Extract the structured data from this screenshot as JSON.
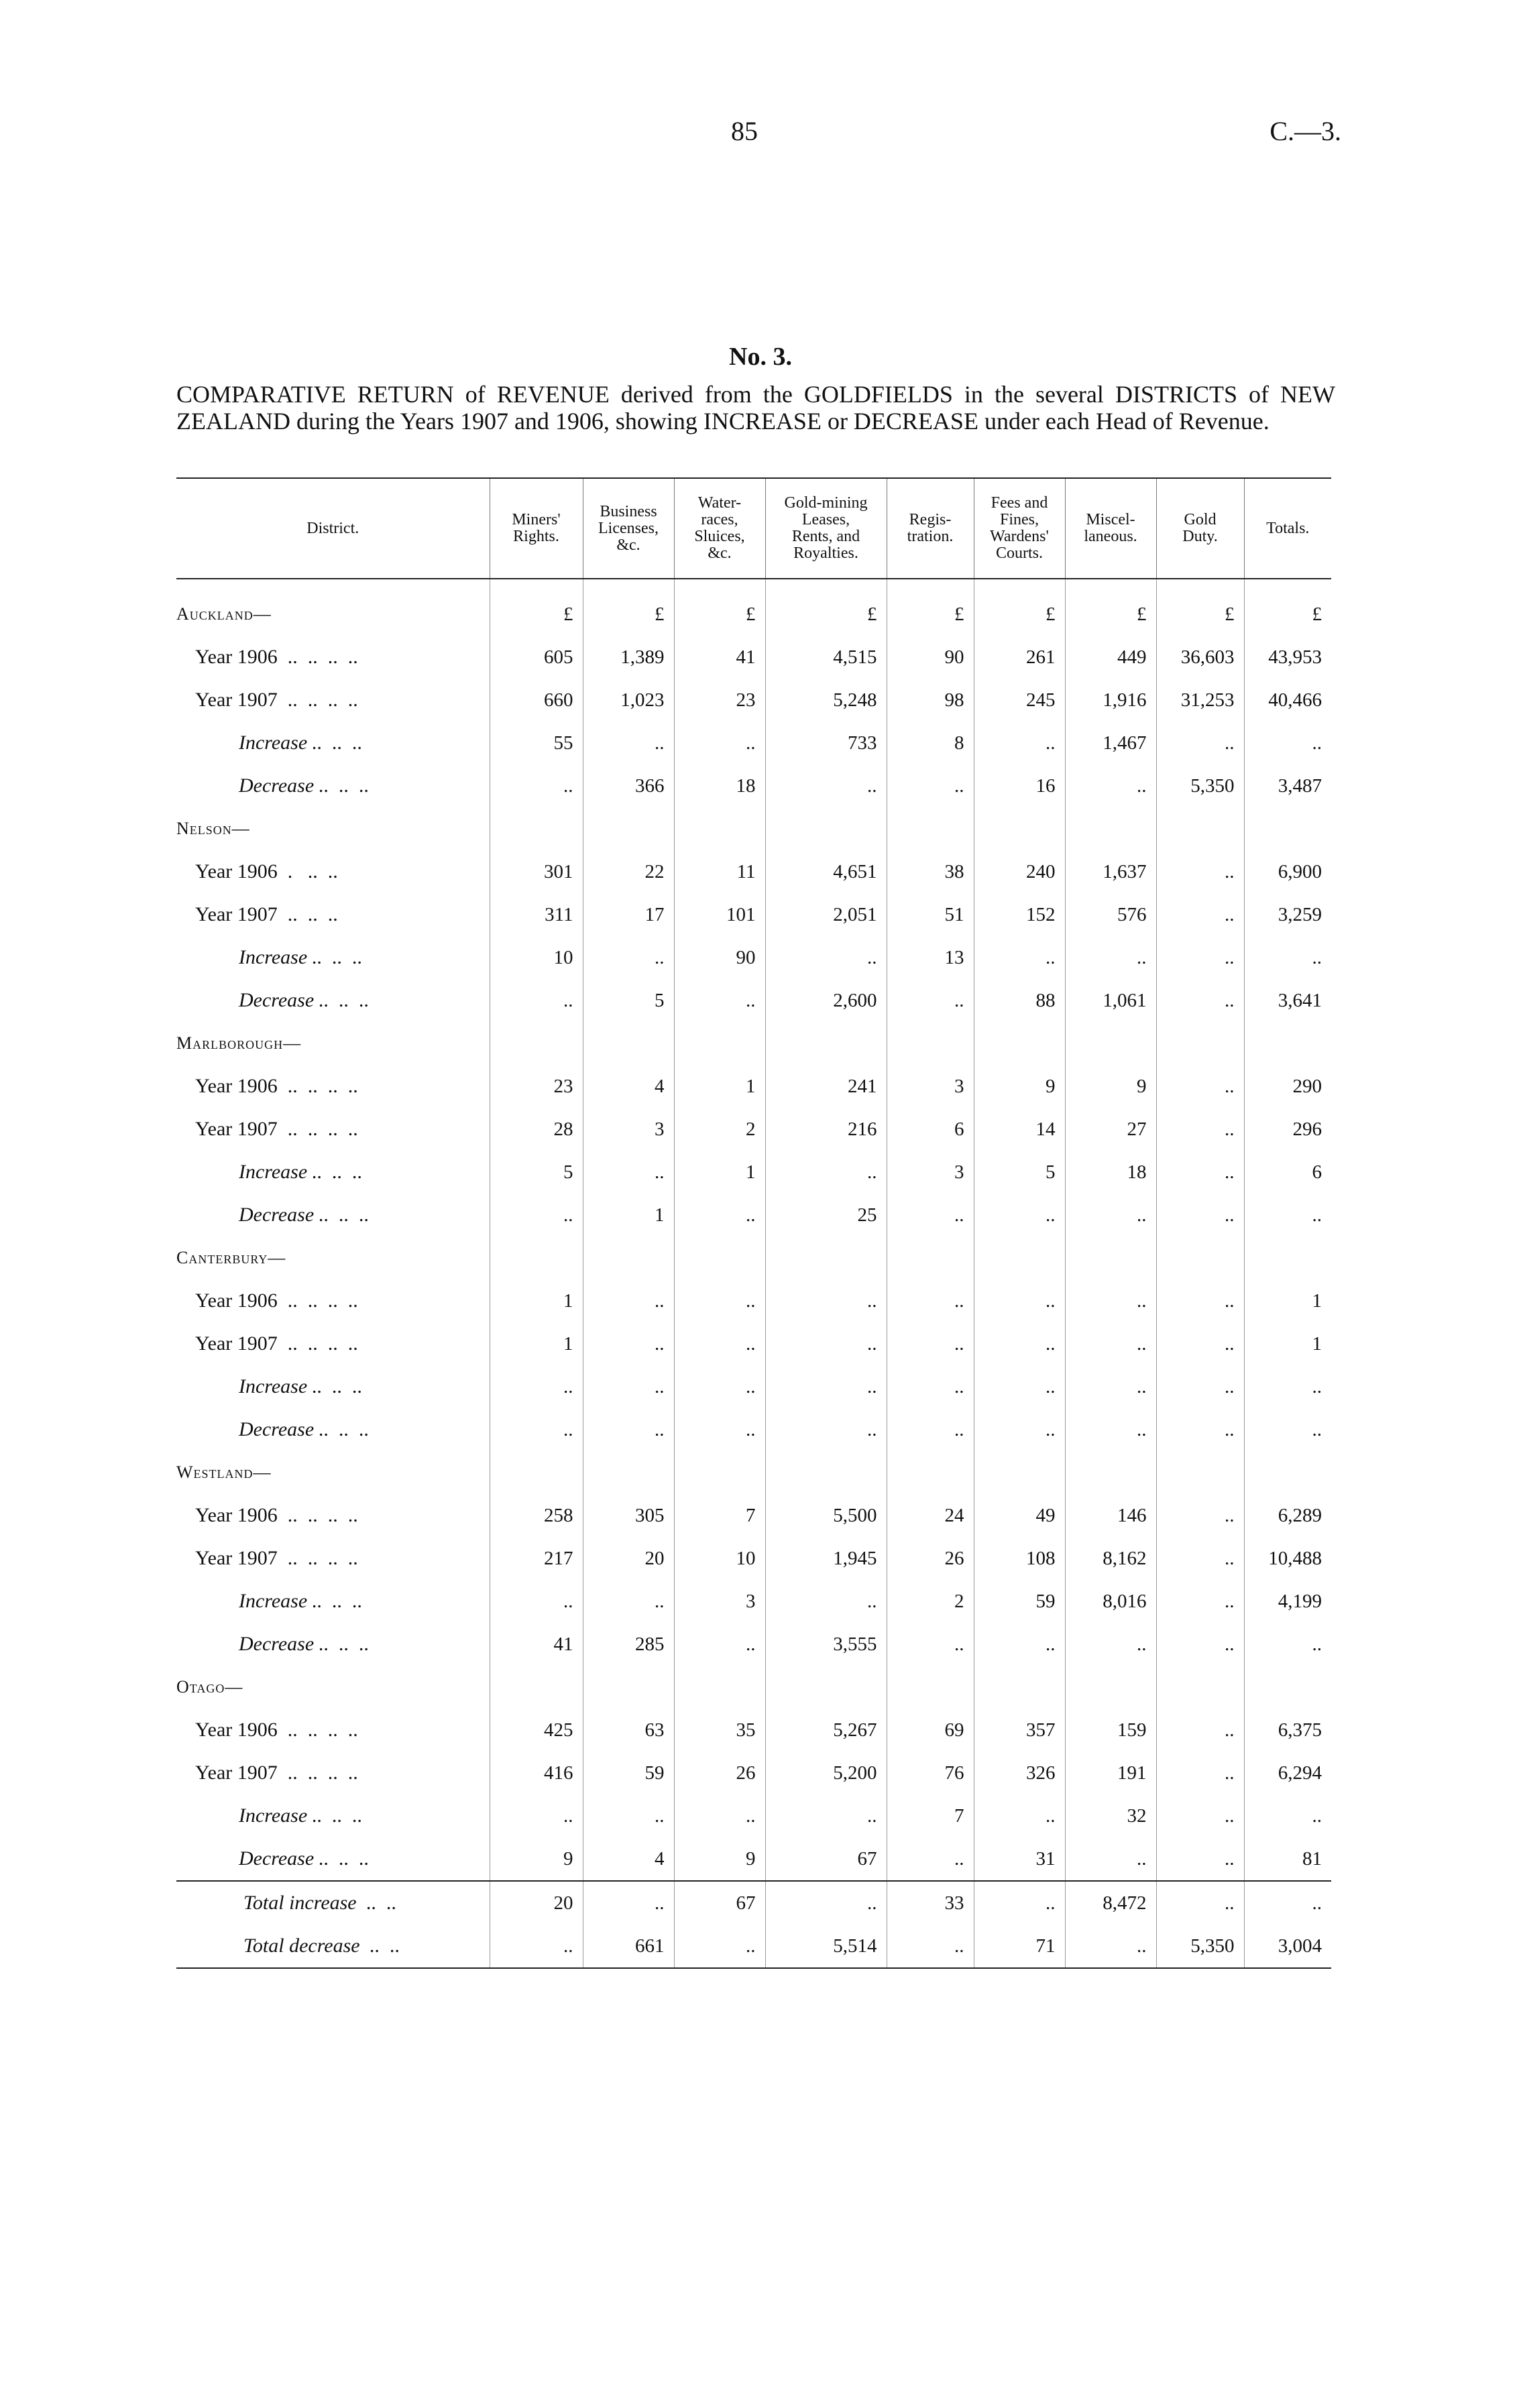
{
  "header": {
    "page_number": "85",
    "reference": "C.—3."
  },
  "title": "No. 3.",
  "description": "COMPARATIVE RETURN of REVENUE derived from the GOLDFIELDS in the several DISTRICTS of NEW ZEALAND during the Years 1907 and 1906, showing INCREASE or DECREASE under each Head of Revenue.",
  "table": {
    "columns": [
      "District.",
      "Miners'\nRights.",
      "Business\nLicenses,\n&c.",
      "Water-\nraces,\nSluices,\n&c.",
      "Gold-mining\nLeases,\nRents, and\nRoyalties.",
      "Regis-\ntration.",
      "Fees and\nFines,\nWardens'\nCourts.",
      "Miscel-\nlaneous.",
      "Gold\nDuty.",
      "Totals."
    ],
    "units": [
      "£",
      "£",
      "£",
      "£",
      "£",
      "£",
      "£",
      "£",
      "£"
    ],
    "groups": [
      {
        "district": "Auckland—",
        "rows": [
          {
            "label": "Year 1906  ..  ..  ..  ..",
            "cells": [
              "605",
              "1,389",
              "41",
              "4,515",
              "90",
              "261",
              "449",
              "36,603",
              "43,953"
            ]
          },
          {
            "label": "Year 1907  ..  ..  ..  ..",
            "cells": [
              "660",
              "1,023",
              "23",
              "5,248",
              "98",
              "245",
              "1,916",
              "31,253",
              "40,466"
            ]
          },
          {
            "label": "Increase ..  ..  ..",
            "cells": [
              "55",
              "..",
              "..",
              "733",
              "8",
              "..",
              "1,467",
              "..",
              ".."
            ]
          },
          {
            "label": "Decrease ..  ..  ..",
            "cells": [
              "..",
              "366",
              "18",
              "..",
              "..",
              "16",
              "..",
              "5,350",
              "3,487"
            ]
          }
        ]
      },
      {
        "district": "Nelson—",
        "rows": [
          {
            "label": "Year 1906  .   ..  ..",
            "cells": [
              "301",
              "22",
              "11",
              "4,651",
              "38",
              "240",
              "1,637",
              "..",
              "6,900"
            ]
          },
          {
            "label": "Year 1907  ..  ..  ..",
            "cells": [
              "311",
              "17",
              "101",
              "2,051",
              "51",
              "152",
              "576",
              "..",
              "3,259"
            ]
          },
          {
            "label": "Increase ..  ..  ..",
            "cells": [
              "10",
              "..",
              "90",
              "..",
              "13",
              "..",
              "..",
              "..",
              ".."
            ]
          },
          {
            "label": "Decrease ..  ..  ..",
            "cells": [
              "..",
              "5",
              "..",
              "2,600",
              "..",
              "88",
              "1,061",
              "..",
              "3,641"
            ]
          }
        ]
      },
      {
        "district": "Marlborough—",
        "rows": [
          {
            "label": "Year 1906  ..  ..  ..  ..",
            "cells": [
              "23",
              "4",
              "1",
              "241",
              "3",
              "9",
              "9",
              "..",
              "290"
            ]
          },
          {
            "label": "Year 1907  ..  ..  ..  ..",
            "cells": [
              "28",
              "3",
              "2",
              "216",
              "6",
              "14",
              "27",
              "..",
              "296"
            ]
          },
          {
            "label": "Increase ..  ..  ..",
            "cells": [
              "5",
              "..",
              "1",
              "..",
              "3",
              "5",
              "18",
              "..",
              "6"
            ]
          },
          {
            "label": "Decrease ..  ..  ..",
            "cells": [
              "..",
              "1",
              "..",
              "25",
              "..",
              "..",
              "..",
              "..",
              ".."
            ]
          }
        ]
      },
      {
        "district": "Canterbury—",
        "rows": [
          {
            "label": "Year 1906  ..  ..  ..  ..",
            "cells": [
              "1",
              "..",
              "..",
              "..",
              "..",
              "..",
              "..",
              "..",
              "1"
            ]
          },
          {
            "label": "Year 1907  ..  ..  ..  ..",
            "cells": [
              "1",
              "..",
              "..",
              "..",
              "..",
              "..",
              "..",
              "..",
              "1"
            ]
          },
          {
            "label": "Increase ..  ..  ..",
            "cells": [
              "..",
              "..",
              "..",
              "..",
              "..",
              "..",
              "..",
              "..",
              ".."
            ]
          },
          {
            "label": "Decrease ..  ..  ..",
            "cells": [
              "..",
              "..",
              "..",
              "..",
              "..",
              "..",
              "..",
              "..",
              ".."
            ]
          }
        ]
      },
      {
        "district": "Westland—",
        "rows": [
          {
            "label": "Year 1906  ..  ..  ..  ..",
            "cells": [
              "258",
              "305",
              "7",
              "5,500",
              "24",
              "49",
              "146",
              "..",
              "6,289"
            ]
          },
          {
            "label": "Year 1907  ..  ..  ..  ..",
            "cells": [
              "217",
              "20",
              "10",
              "1,945",
              "26",
              "108",
              "8,162",
              "..",
              "10,488"
            ]
          },
          {
            "label": "Increase ..  ..  ..",
            "cells": [
              "..",
              "..",
              "3",
              "..",
              "2",
              "59",
              "8,016",
              "..",
              "4,199"
            ]
          },
          {
            "label": "Decrease ..  ..  ..",
            "cells": [
              "41",
              "285",
              "..",
              "3,555",
              "..",
              "..",
              "..",
              "..",
              ".."
            ]
          }
        ]
      },
      {
        "district": "Otago—",
        "rows": [
          {
            "label": "Year 1906  ..  ..  ..  ..",
            "cells": [
              "425",
              "63",
              "35",
              "5,267",
              "69",
              "357",
              "159",
              "..",
              "6,375"
            ]
          },
          {
            "label": "Year 1907  ..  ..  ..  ..",
            "cells": [
              "416",
              "59",
              "26",
              "5,200",
              "76",
              "326",
              "191",
              "..",
              "6,294"
            ]
          },
          {
            "label": "Increase ..  ..  ..",
            "cells": [
              "..",
              "..",
              "..",
              "..",
              "7",
              "..",
              "32",
              "..",
              ".."
            ]
          },
          {
            "label": "Decrease ..  ..  ..",
            "cells": [
              "9",
              "4",
              "9",
              "67",
              "..",
              "31",
              "..",
              "..",
              "81"
            ]
          }
        ]
      }
    ],
    "totals": [
      {
        "label": "Total increase  ..  ..",
        "cells": [
          "20",
          "..",
          "67",
          "..",
          "33",
          "..",
          "8,472",
          "..",
          ".."
        ]
      },
      {
        "label": "Total decrease  ..  ..",
        "cells": [
          "..",
          "661",
          "..",
          "5,514",
          "..",
          "71",
          "..",
          "5,350",
          "3,004"
        ]
      }
    ]
  }
}
